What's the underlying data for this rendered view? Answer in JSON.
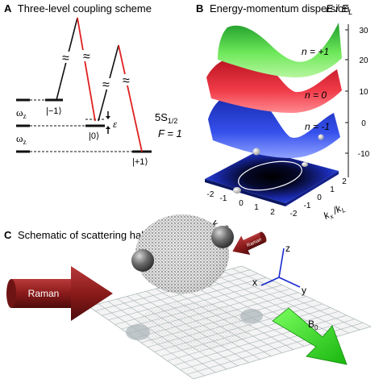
{
  "panels": {
    "a": {
      "letter": "A",
      "title": "Three-level coupling scheme"
    },
    "b": {
      "letter": "B",
      "title": "Energy-momentum dispersion"
    },
    "c": {
      "letter": "C",
      "title": "Schematic of scattering halo"
    }
  },
  "levels": {
    "minus": "|−1⟩",
    "zero": "|0⟩",
    "plus": "|+1⟩",
    "omega_top": "ω",
    "omega_bottom": "ω",
    "omega_sub": "z",
    "epsilon": "ε",
    "state_label_1": "5S",
    "state_label_1_sub": "1/2",
    "state_label_2": "F = 1",
    "break_mark": "≈"
  },
  "dispersion": {
    "energy_axis": "E / E",
    "energy_sub": "L",
    "ticks": [
      "30",
      "20",
      "10",
      "0",
      "-10"
    ],
    "band_labels": [
      "n = +1",
      "n = 0",
      "n = -1"
    ],
    "kx_label": "k",
    "kx_sub": "x",
    "kx_tail": " /k",
    "kx_tail_sub": "L",
    "ky_label": "k",
    "ky_sub": "y",
    "ky_tail": " /k",
    "ky_tail_sub": "L",
    "left_ticks": [
      "-2",
      "-1",
      "0",
      "1",
      "2"
    ],
    "right_ticks": [
      "-2",
      "-1",
      "0",
      "1",
      "2"
    ]
  },
  "halo": {
    "raman_big": "Raman",
    "raman_small": "Raman",
    "axis_x": "x",
    "axis_y": "y",
    "axis_z": "z",
    "field": "B",
    "field_sub": "0"
  },
  "colors": {
    "band_plus": "#55d24a",
    "band_zero": "#ee2a3a",
    "band_minus": "#2c43e0",
    "floor": "#1b2aa0",
    "raman_arrow": "#8a1a1a",
    "field_arrow": "#2ee022",
    "red_line": "#e02020"
  }
}
